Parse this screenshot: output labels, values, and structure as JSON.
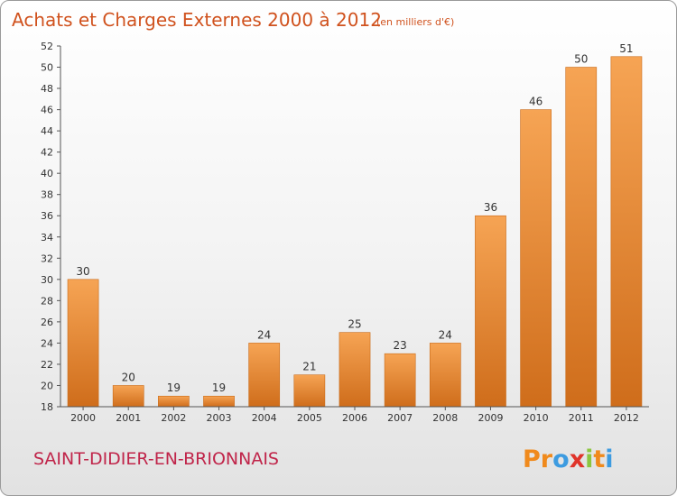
{
  "chart_data": {
    "type": "bar",
    "title": "Achats et Charges Externes 2000 à 2012",
    "subtitle": "(en milliers d'€)",
    "categories": [
      "2000",
      "2001",
      "2002",
      "2003",
      "2004",
      "2005",
      "2006",
      "2007",
      "2008",
      "2009",
      "2010",
      "2011",
      "2012"
    ],
    "values": [
      30,
      20,
      19,
      19,
      24,
      21,
      25,
      23,
      24,
      36,
      46,
      50,
      51
    ],
    "ylim": [
      18,
      52
    ],
    "yticks": [
      18,
      20,
      22,
      24,
      26,
      28,
      30,
      32,
      34,
      36,
      38,
      40,
      42,
      44,
      46,
      48,
      50,
      52
    ],
    "grid": false,
    "bar_color": "#ef8f32"
  },
  "commune": "SAINT-DIDIER-EN-BRIONNAIS",
  "logo": {
    "letters": [
      "P",
      "r",
      "o",
      "x",
      "i",
      "t",
      "i"
    ],
    "colors": [
      "#f08a1c",
      "#f08a1c",
      "#3d9be0",
      "#e0342a",
      "#8cc63f",
      "#f08a1c",
      "#3d9be0"
    ]
  }
}
